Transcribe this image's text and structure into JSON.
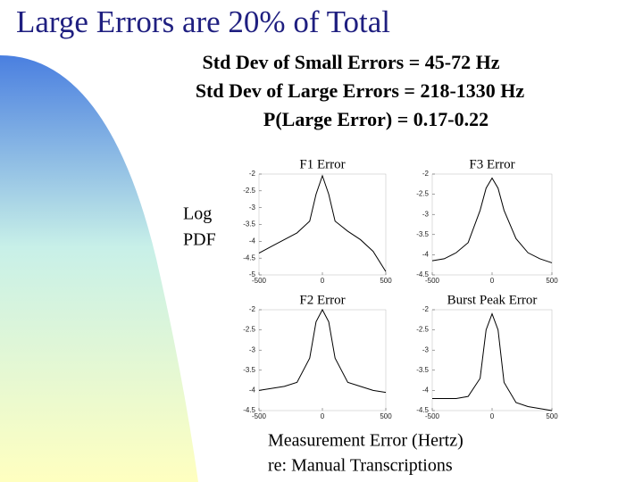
{
  "title": "Large Errors are 20% of Total",
  "text_lines": [
    "Std Dev of Small Errors = 45-72 Hz",
    "Std Dev of Large Errors = 218-1330 Hz",
    "P(Large Error) = 0.17-0.22"
  ],
  "y_label_lines": [
    "Log",
    "PDF"
  ],
  "x_label_lines": [
    "Measurement Error (Hertz)",
    "re:  Manual Transcriptions"
  ],
  "chart_data": [
    {
      "type": "line",
      "title": "F1 Error",
      "x": [
        -500,
        -400,
        -300,
        -200,
        -100,
        -50,
        0,
        50,
        100,
        200,
        300,
        400,
        500
      ],
      "values": [
        -4.35,
        -4.15,
        -3.95,
        -3.75,
        -3.4,
        -2.6,
        -2.05,
        -2.6,
        -3.4,
        -3.7,
        -3.95,
        -4.3,
        -4.9
      ],
      "xlim": [
        -500,
        500
      ],
      "xticks": [
        -500,
        0,
        500
      ],
      "ylim": [
        -5,
        -2
      ],
      "yticks": [
        -2,
        -2.5,
        -3,
        -3.5,
        -4,
        -4.5,
        -5
      ],
      "color": "#000000"
    },
    {
      "type": "line",
      "title": "F3 Error",
      "x": [
        -500,
        -400,
        -300,
        -200,
        -100,
        -50,
        0,
        50,
        100,
        200,
        300,
        400,
        500
      ],
      "values": [
        -4.15,
        -4.1,
        -3.95,
        -3.7,
        -2.9,
        -2.35,
        -2.1,
        -2.35,
        -2.9,
        -3.6,
        -3.95,
        -4.1,
        -4.2
      ],
      "xlim": [
        -500,
        500
      ],
      "xticks": [
        -500,
        0,
        500
      ],
      "ylim": [
        -4.5,
        -2
      ],
      "yticks": [
        -2,
        -2.5,
        -3,
        -3.5,
        -4,
        -4.5
      ],
      "color": "#000000"
    },
    {
      "type": "line",
      "title": "F2 Error",
      "x": [
        -500,
        -400,
        -300,
        -200,
        -100,
        -50,
        0,
        50,
        100,
        200,
        300,
        400,
        500
      ],
      "values": [
        -4.0,
        -3.95,
        -3.9,
        -3.8,
        -3.2,
        -2.3,
        -2.0,
        -2.3,
        -3.2,
        -3.8,
        -3.9,
        -4.0,
        -4.05
      ],
      "xlim": [
        -500,
        500
      ],
      "xticks": [
        -500,
        0,
        500
      ],
      "ylim": [
        -4.5,
        -2
      ],
      "yticks": [
        -2,
        -2.5,
        -3,
        -3.5,
        -4,
        -4.5
      ],
      "color": "#000000"
    },
    {
      "type": "line",
      "title": "Burst Peak Error",
      "x": [
        -500,
        -400,
        -300,
        -200,
        -100,
        -50,
        0,
        50,
        100,
        200,
        300,
        400,
        500
      ],
      "values": [
        -4.2,
        -4.2,
        -4.2,
        -4.15,
        -3.7,
        -2.5,
        -2.1,
        -2.5,
        -3.8,
        -4.3,
        -4.4,
        -4.45,
        -4.5
      ],
      "xlim": [
        -500,
        500
      ],
      "xticks": [
        -500,
        0,
        500
      ],
      "ylim": [
        -4.5,
        -2
      ],
      "yticks": [
        -2,
        -2.5,
        -3,
        -3.5,
        -4,
        -4.5
      ],
      "color": "#000000"
    }
  ]
}
